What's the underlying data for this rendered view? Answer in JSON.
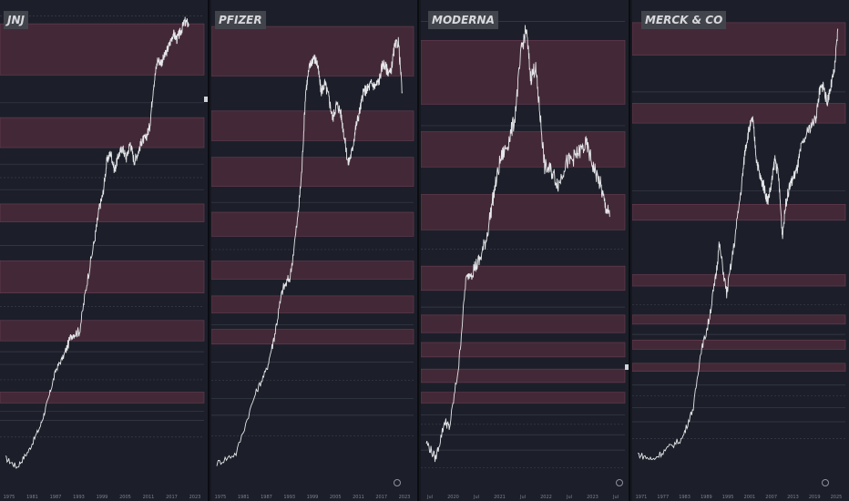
{
  "theme": {
    "background": "#1c1f29",
    "zone_fill": "#4a2b3a",
    "zone_border": "#6b3f55",
    "price_line": "#e6e7ea",
    "grid_line": "#3a3e4a",
    "axis_text": "#7d818c"
  },
  "chart_data": [
    {
      "type": "line",
      "title": "JNJ",
      "x_ticks": [
        "1975",
        "1981",
        "1987",
        "1993",
        "1999",
        "2005",
        "2011",
        "2017",
        "2023"
      ],
      "x_range": [
        1975,
        2025
      ],
      "y_scale": "log",
      "y_range": [
        0.3,
        200
      ],
      "series": [
        {
          "x": [
            1975,
            1978,
            1981,
            1984,
            1986,
            1988,
            1990,
            1992,
            1994,
            1996,
            1998,
            1999,
            2000,
            2001,
            2002,
            2003,
            2004,
            2005,
            2006,
            2007,
            2008,
            2009,
            2010,
            2011,
            2012,
            2013,
            2014,
            2015,
            2016,
            2017,
            2018,
            2019,
            2020,
            2021,
            2022
          ],
          "y": [
            0.45,
            0.4,
            0.5,
            0.7,
            1.0,
            1.5,
            1.8,
            2.4,
            2.5,
            5,
            9,
            13,
            16,
            25,
            28,
            22,
            27,
            30,
            26,
            32,
            25,
            28,
            33,
            34,
            40,
            70,
            98,
            95,
            105,
            120,
            140,
            130,
            145,
            165,
            160
          ]
        }
      ],
      "zones": [
        [
          0.95,
          1.1
        ],
        [
          2.2,
          2.9
        ],
        [
          4.2,
          6.5
        ],
        [
          11,
          14
        ],
        [
          30,
          45
        ],
        [
          80,
          160
        ]
      ],
      "levels": [
        0.6,
        0.75,
        0.85,
        1.3,
        1.6,
        1.9,
        3.5,
        8,
        17,
        20,
        24,
        55,
        178
      ]
    },
    {
      "type": "line",
      "title": "PFIZER",
      "x_ticks": [
        "1975",
        "1981",
        "1987",
        "1993",
        "1999",
        "2005",
        "2011",
        "2017",
        "2023"
      ],
      "x_range": [
        1975,
        2025
      ],
      "y_scale": "log",
      "y_range": [
        0.3,
        80
      ],
      "series": [
        {
          "x": [
            1975,
            1980,
            1985,
            1988,
            1990,
            1992,
            1994,
            1996,
            1997,
            1998,
            1999,
            2000,
            2001,
            2002,
            2003,
            2004,
            2005,
            2006,
            2007,
            2008,
            2009,
            2010,
            2011,
            2012,
            2013,
            2014,
            2015,
            2016,
            2017,
            2018,
            2019,
            2020,
            2021,
            2022,
            2023
          ],
          "y": [
            0.4,
            0.45,
            0.9,
            1.2,
            1.8,
            3,
            3.5,
            7,
            12,
            30,
            40,
            45,
            42,
            30,
            33,
            28,
            22,
            26,
            24,
            18,
            13,
            15,
            20,
            24,
            30,
            31,
            33,
            32,
            34,
            42,
            39,
            37,
            50,
            54,
            30
          ]
        }
      ],
      "zones": [
        [
          1.6,
          1.9
        ],
        [
          2.3,
          2.8
        ],
        [
          3.4,
          4.2
        ],
        [
          5.6,
          7.4
        ],
        [
          10,
          14
        ],
        [
          17,
          24
        ],
        [
          36,
          64
        ]
      ],
      "levels": [
        0.55,
        0.7,
        0.85,
        1.05,
        1.3,
        2.0,
        4.8,
        8.3
      ]
    },
    {
      "type": "line",
      "title": "MODERNA",
      "x_ticks": [
        "Jul",
        "2020",
        "Jul",
        "2021",
        "Jul",
        "2022",
        "Jul",
        "2023",
        "Jul"
      ],
      "x_range": [
        2019.5,
        2023.7
      ],
      "y_scale": "log",
      "y_range": [
        11,
        550
      ],
      "series": [
        {
          "x": [
            2019.5,
            2019.7,
            2019.9,
            2020.0,
            2020.2,
            2020.35,
            2020.5,
            2020.65,
            2020.8,
            2020.95,
            2021.1,
            2021.25,
            2021.4,
            2021.55,
            2021.65,
            2021.75,
            2021.85,
            2021.95,
            2022.05,
            2022.2,
            2022.35,
            2022.5,
            2022.65,
            2022.8,
            2022.95,
            2023.1,
            2023.25,
            2023.35,
            2023.45
          ],
          "y": [
            16,
            14,
            19,
            18,
            30,
            60,
            65,
            70,
            85,
            120,
            160,
            180,
            220,
            390,
            460,
            310,
            340,
            230,
            150,
            145,
            130,
            155,
            160,
            170,
            180,
            150,
            130,
            110,
            100
          ]
        }
      ],
      "zones": [
        [
          22,
          24
        ],
        [
          26,
          29
        ],
        [
          32,
          36
        ],
        [
          39,
          45
        ],
        [
          55,
          67
        ],
        [
          90,
          120
        ],
        [
          150,
          200
        ],
        [
          250,
          420
        ]
      ],
      "levels": [
        13,
        15,
        17,
        18.5,
        20,
        48,
        77,
        210,
        490
      ]
    },
    {
      "type": "line",
      "title": "MERCK & CO",
      "x_ticks": [
        "1971",
        "1977",
        "1983",
        "1989",
        "1995",
        "2001",
        "2007",
        "2013",
        "2019",
        "2025"
      ],
      "x_range": [
        1970,
        2025
      ],
      "y_scale": "log",
      "y_range": [
        0.5,
        150
      ],
      "series": [
        {
          "x": [
            1970,
            1974,
            1978,
            1982,
            1985,
            1987,
            1989,
            1991,
            1992,
            1994,
            1996,
            1998,
            1999,
            2000,
            2001,
            2002,
            2003,
            2004,
            2005,
            2006,
            2007,
            2008,
            2009,
            2010,
            2011,
            2012,
            2013,
            2014,
            2016,
            2018,
            2019,
            2020,
            2021,
            2022,
            2023,
            2024
          ],
          "y": [
            0.75,
            0.7,
            0.8,
            0.9,
            1.3,
            2.5,
            3.5,
            6,
            9,
            5,
            9,
            18,
            28,
            35,
            40,
            25,
            20,
            18,
            15,
            18,
            25,
            20,
            10,
            15,
            18,
            20,
            22,
            28,
            35,
            40,
            55,
            60,
            48,
            58,
            70,
            115
          ]
        }
      ],
      "zones": [
        [
          2.0,
          2.2
        ],
        [
          2.6,
          2.9
        ],
        [
          3.5,
          3.9
        ],
        [
          5.5,
          6.3
        ],
        [
          12,
          14.5
        ],
        [
          38,
          48
        ],
        [
          85,
          125
        ]
      ],
      "levels": [
        0.9,
        1.1,
        1.3,
        1.5,
        1.7,
        3.1,
        4.4,
        17,
        55
      ]
    }
  ]
}
